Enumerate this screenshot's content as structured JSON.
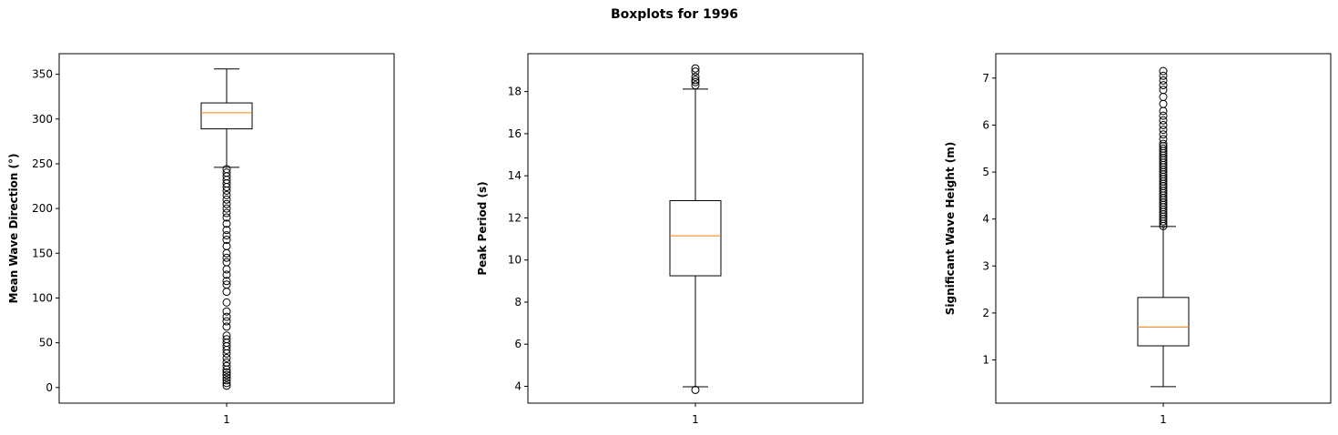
{
  "figure": {
    "title": "Boxplots for 1996"
  },
  "chart_data": [
    {
      "type": "boxplot",
      "ylabel": "Mean Wave Direction (°)",
      "xlabel": "",
      "categories": [
        "1"
      ],
      "ylim": [
        -17.5,
        373
      ],
      "yticks": [
        0,
        50,
        100,
        150,
        200,
        250,
        300,
        350
      ],
      "grid": false,
      "box": {
        "whisker_low": 246,
        "q1": 289,
        "median": 307,
        "q3": 318,
        "whisker_high": 356
      },
      "outliers": [
        244,
        240,
        236,
        232,
        228,
        224,
        220,
        215,
        210,
        205,
        200,
        195,
        190,
        183,
        176,
        170,
        165,
        158,
        150,
        145,
        140,
        132,
        126,
        119,
        115,
        107,
        95,
        85,
        79,
        74,
        68,
        58,
        54,
        50,
        46,
        42,
        38,
        33,
        28,
        24,
        20,
        17,
        14,
        11,
        8,
        5,
        2
      ],
      "colors": {
        "median": "#ff7f0e",
        "box": "#000000"
      }
    },
    {
      "type": "boxplot",
      "ylabel": "Peak Period (s)",
      "xlabel": "",
      "categories": [
        "1"
      ],
      "ylim": [
        3.2,
        19.8
      ],
      "yticks": [
        4,
        6,
        8,
        10,
        12,
        14,
        16,
        18
      ],
      "grid": false,
      "box": {
        "whisker_low": 3.98,
        "q1": 9.25,
        "median": 11.15,
        "q3": 12.82,
        "whisker_high": 18.12
      },
      "outliers": [
        3.83,
        18.3,
        18.45,
        18.55,
        18.7,
        18.95,
        19.1
      ],
      "colors": {
        "median": "#ff7f0e",
        "box": "#000000"
      }
    },
    {
      "type": "boxplot",
      "ylabel": "Significant Wave Height (m)",
      "xlabel": "",
      "categories": [
        "1"
      ],
      "ylim": [
        0.08,
        7.52
      ],
      "yticks": [
        1,
        2,
        3,
        4,
        5,
        6,
        7
      ],
      "grid": false,
      "box": {
        "whisker_low": 0.43,
        "q1": 1.3,
        "median": 1.7,
        "q3": 2.33,
        "whisker_high": 3.84
      },
      "outliers": [
        3.85,
        3.9,
        3.95,
        4.0,
        4.05,
        4.1,
        4.15,
        4.2,
        4.25,
        4.3,
        4.35,
        4.4,
        4.45,
        4.5,
        4.55,
        4.6,
        4.65,
        4.7,
        4.75,
        4.8,
        4.85,
        4.9,
        4.95,
        5.0,
        5.05,
        5.1,
        5.15,
        5.2,
        5.25,
        5.3,
        5.35,
        5.4,
        5.45,
        5.5,
        5.55,
        5.6,
        5.7,
        5.8,
        5.9,
        6.0,
        6.1,
        6.2,
        6.3,
        6.45,
        6.6,
        6.75,
        6.85,
        6.95,
        7.05,
        7.15
      ],
      "colors": {
        "median": "#ff7f0e",
        "box": "#000000"
      }
    }
  ]
}
